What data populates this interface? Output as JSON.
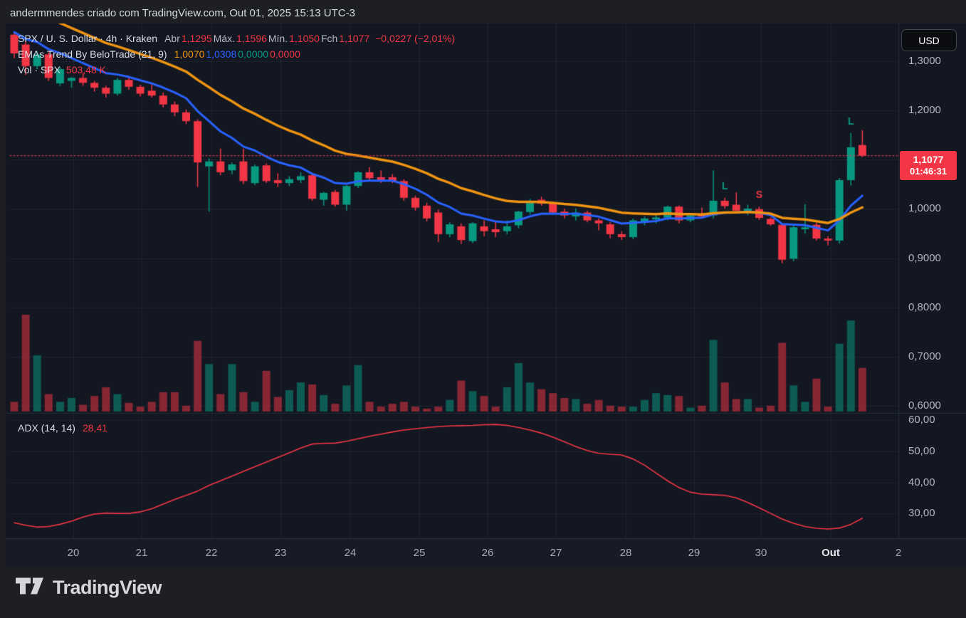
{
  "top_bar": {
    "attribution": "andermmendes criado com TradingView.com, Out 01, 2025 15:13 UTC-3"
  },
  "colors": {
    "up": "#089981",
    "down": "#f23645",
    "ema_fast": "#2962ff",
    "ema_slow": "#ef9412",
    "adx_line": "#f23645",
    "accent_red": "#f23645",
    "grid": "rgba(240,243,250,0.06)",
    "divider": "#262b38",
    "chart_bg": "#131722",
    "outer_bg": "#1e1f23"
  },
  "legend": {
    "symbol": {
      "title": "SPX / U. S. Dollar · 4h · Kraken",
      "ohlc": [
        {
          "label": "Abr",
          "value": "1,1295"
        },
        {
          "label": "Máx.",
          "value": "1,1596"
        },
        {
          "label": "Mín.",
          "value": "1,1050"
        },
        {
          "label": "Fch",
          "value": "1,1077"
        }
      ],
      "change": "−0,0227 (−2,01%)"
    },
    "ema": {
      "title": "EMAs Trend By BeloTrade (21, 9)",
      "values": [
        {
          "text": "1,0070",
          "color": "#ef9412"
        },
        {
          "text": "1,0308",
          "color": "#2962ff"
        },
        {
          "text": "0,0000",
          "color": "#089981"
        },
        {
          "text": "0,0000",
          "color": "#f23645"
        }
      ]
    },
    "vol": {
      "title": "Vol · SPX",
      "value": "503,48 K"
    }
  },
  "adx_legend": {
    "title": "ADX (14, 14)",
    "value": "28,41"
  },
  "axis": {
    "currency": "USD",
    "price_labels": [
      [
        "1,3000",
        86
      ],
      [
        "1,2000",
        155
      ],
      [
        "1,0000",
        293
      ],
      [
        "0,9000",
        363
      ],
      [
        "0,8000",
        432
      ],
      [
        "0,7000",
        501
      ],
      [
        "0,6000",
        570
      ]
    ],
    "adx_labels": [
      [
        "60,00",
        590
      ],
      [
        "50,00",
        634
      ],
      [
        "40,00",
        678
      ],
      [
        "30,00",
        721
      ]
    ],
    "time_labels": [
      [
        "20",
        103
      ],
      [
        "21",
        199
      ],
      [
        "22",
        297
      ],
      [
        "23",
        394
      ],
      [
        "24",
        492
      ],
      [
        "25",
        589
      ],
      [
        "26",
        685
      ],
      [
        "27",
        781
      ],
      [
        "28",
        879
      ],
      [
        "29",
        975
      ],
      [
        "30",
        1069
      ],
      [
        "Out",
        1167
      ],
      [
        "2",
        1262
      ]
    ]
  },
  "price_tag": {
    "price": "1,1077",
    "countdown": "01:46:31"
  },
  "footer": {
    "brand": "TradingView"
  },
  "chart_data": {
    "type": "candlestick",
    "symbol": "SPX / U. S. Dollar",
    "timeframe": "4h",
    "exchange": "Kraken",
    "last": {
      "open": 1.1295,
      "high": 1.1596,
      "low": 1.105,
      "close": 1.1077,
      "change": "−0,0227 (−2,01%)",
      "volume": "503,48 K"
    },
    "price_axis_range": [
      0.58,
      1.39
    ],
    "adx_axis_range": [
      22,
      62
    ],
    "grid": true,
    "x_day_labels": [
      "20",
      "21",
      "22",
      "23",
      "24",
      "25",
      "26",
      "27",
      "28",
      "29",
      "30",
      "Out"
    ],
    "candles_format": [
      "open",
      "high",
      "low",
      "close",
      "volume_rel"
    ],
    "candles": [
      [
        1.354,
        1.36,
        1.306,
        1.316,
        0.1
      ],
      [
        1.334,
        1.34,
        1.272,
        1.29,
        1.0
      ],
      [
        1.29,
        1.32,
        1.284,
        1.314,
        0.58
      ],
      [
        1.314,
        1.318,
        1.26,
        1.266,
        0.18
      ],
      [
        1.255,
        1.288,
        1.25,
        1.284,
        0.1
      ],
      [
        1.26,
        1.268,
        1.246,
        1.266,
        0.14
      ],
      [
        1.266,
        1.276,
        1.25,
        1.256,
        0.07
      ],
      [
        1.256,
        1.26,
        1.238,
        1.246,
        0.16
      ],
      [
        1.246,
        1.25,
        1.226,
        1.234,
        0.25
      ],
      [
        1.234,
        1.266,
        1.23,
        1.262,
        0.18
      ],
      [
        1.262,
        1.268,
        1.242,
        1.248,
        0.09
      ],
      [
        1.248,
        1.252,
        1.228,
        1.234,
        0.05
      ],
      [
        1.24,
        1.252,
        1.226,
        1.23,
        0.1
      ],
      [
        1.23,
        1.236,
        1.206,
        1.212,
        0.2
      ],
      [
        1.212,
        1.218,
        1.188,
        1.196,
        0.2
      ],
      [
        1.196,
        1.202,
        1.172,
        1.178,
        0.06
      ],
      [
        1.178,
        1.182,
        1.044,
        1.094,
        0.73
      ],
      [
        1.086,
        1.102,
        0.994,
        1.096,
        0.49
      ],
      [
        1.096,
        1.122,
        1.068,
        1.074,
        0.18
      ],
      [
        1.078,
        1.094,
        1.07,
        1.09,
        0.49
      ],
      [
        1.096,
        1.122,
        1.05,
        1.056,
        0.2
      ],
      [
        1.052,
        1.09,
        1.048,
        1.086,
        0.1
      ],
      [
        1.088,
        1.092,
        1.052,
        1.056,
        0.42
      ],
      [
        1.058,
        1.072,
        1.044,
        1.052,
        0.15
      ],
      [
        1.052,
        1.066,
        1.046,
        1.06,
        0.22
      ],
      [
        1.058,
        1.074,
        1.052,
        1.066,
        0.3
      ],
      [
        1.068,
        1.072,
        1.016,
        1.02,
        0.28
      ],
      [
        1.018,
        1.034,
        1.006,
        1.032,
        0.17
      ],
      [
        1.034,
        1.038,
        1.004,
        1.008,
        0.08
      ],
      [
        1.008,
        1.048,
        0.996,
        1.046,
        0.27
      ],
      [
        1.046,
        1.076,
        1.042,
        1.074,
        0.48
      ],
      [
        1.074,
        1.084,
        1.056,
        1.062,
        0.1
      ],
      [
        1.064,
        1.078,
        1.052,
        1.058,
        0.05
      ],
      [
        1.064,
        1.07,
        1.052,
        1.056,
        0.08
      ],
      [
        1.056,
        1.06,
        1.016,
        1.022,
        0.1
      ],
      [
        1.022,
        1.026,
        0.996,
        1.002,
        0.05
      ],
      [
        1.006,
        1.012,
        0.974,
        0.98,
        0.03
      ],
      [
        0.992,
        0.998,
        0.932,
        0.948,
        0.05
      ],
      [
        0.948,
        0.972,
        0.942,
        0.968,
        0.12
      ],
      [
        0.964,
        0.97,
        0.928,
        0.936,
        0.32
      ],
      [
        0.934,
        0.972,
        0.93,
        0.97,
        0.21
      ],
      [
        0.964,
        0.976,
        0.944,
        0.954,
        0.16
      ],
      [
        0.958,
        0.974,
        0.942,
        0.952,
        0.05
      ],
      [
        0.954,
        0.976,
        0.948,
        0.964,
        0.25
      ],
      [
        0.966,
        0.996,
        0.96,
        0.994,
        0.5
      ],
      [
        0.993,
        1.02,
        0.988,
        1.016,
        0.3
      ],
      [
        1.018,
        1.024,
        1.006,
        1.01,
        0.23
      ],
      [
        1.012,
        1.014,
        0.988,
        0.992,
        0.19
      ],
      [
        0.994,
        1.0,
        0.98,
        0.986,
        0.14
      ],
      [
        0.984,
        1.0,
        0.976,
        0.992,
        0.13
      ],
      [
        0.992,
        0.996,
        0.972,
        0.976,
        0.08
      ],
      [
        0.976,
        0.98,
        0.956,
        0.97,
        0.12
      ],
      [
        0.968,
        0.972,
        0.94,
        0.948,
        0.06
      ],
      [
        0.948,
        0.954,
        0.936,
        0.942,
        0.05
      ],
      [
        0.942,
        0.98,
        0.938,
        0.976,
        0.05
      ],
      [
        0.972,
        0.984,
        0.966,
        0.98,
        0.12
      ],
      [
        0.978,
        0.986,
        0.97,
        0.982,
        0.19
      ],
      [
        0.982,
        1.006,
        0.976,
        1.004,
        0.17
      ],
      [
        1.004,
        1.006,
        0.97,
        0.976,
        0.16
      ],
      [
        0.976,
        0.988,
        0.972,
        0.986,
        0.04
      ],
      [
        0.99,
        1.002,
        0.98,
        0.984,
        0.06
      ],
      [
        0.986,
        1.078,
        0.98,
        1.016,
        0.74
      ],
      [
        1.016,
        1.022,
        1.0,
        1.005,
        0.3
      ],
      [
        1.008,
        1.033,
        0.993,
        0.996,
        0.13
      ],
      [
        0.995,
        1.008,
        0.987,
        1.0,
        0.13
      ],
      [
        0.999,
        1.004,
        0.977,
        0.981,
        0.04
      ],
      [
        0.979,
        0.982,
        0.965,
        0.968,
        0.06
      ],
      [
        0.967,
        0.97,
        0.889,
        0.896,
        0.71
      ],
      [
        0.898,
        0.966,
        0.893,
        0.962,
        0.27
      ],
      [
        0.958,
        1.009,
        0.949,
        0.962,
        0.1
      ],
      [
        0.967,
        0.971,
        0.935,
        0.939,
        0.34
      ],
      [
        0.939,
        0.944,
        0.925,
        0.935,
        0.05
      ],
      [
        0.935,
        1.062,
        0.929,
        1.058,
        0.7
      ],
      [
        1.058,
        1.154,
        1.047,
        1.125,
        0.94
      ],
      [
        1.1295,
        1.1596,
        1.105,
        1.1077,
        0.45
      ]
    ],
    "emas": {
      "periods": [
        9,
        21
      ],
      "seeds": [
        1.37,
        1.43
      ],
      "last_values": [
        1.0308,
        1.007
      ]
    },
    "adx": {
      "params": "(14, 14)",
      "last": 28.41,
      "values": [
        27.0,
        26.2,
        25.6,
        25.8,
        26.5,
        27.5,
        28.8,
        29.8,
        30.1,
        30.0,
        30.0,
        30.5,
        31.5,
        33.0,
        34.5,
        35.8,
        37.2,
        39.0,
        40.5,
        42.0,
        43.5,
        45.0,
        46.5,
        48.0,
        49.5,
        51.0,
        52.3,
        52.5,
        52.6,
        53.2,
        54.0,
        54.8,
        55.5,
        56.2,
        56.8,
        57.2,
        57.6,
        57.9,
        58.1,
        58.2,
        58.3,
        58.5,
        58.6,
        58.3,
        57.6,
        56.8,
        55.8,
        54.5,
        53.0,
        51.5,
        50.2,
        49.3,
        49.0,
        48.8,
        47.5,
        45.5,
        43.0,
        40.5,
        38.3,
        36.8,
        36.2,
        36.0,
        35.8,
        35.0,
        33.5,
        31.8,
        30.0,
        28.2,
        26.8,
        25.8,
        25.2,
        25.0,
        25.3,
        26.5,
        28.41
      ]
    },
    "markers": [
      {
        "index": 62,
        "label": "L"
      },
      {
        "index": 65,
        "label": "S"
      },
      {
        "index": 73,
        "label": "L"
      }
    ],
    "last_price": 1.1077,
    "countdown": "01:46:31"
  }
}
